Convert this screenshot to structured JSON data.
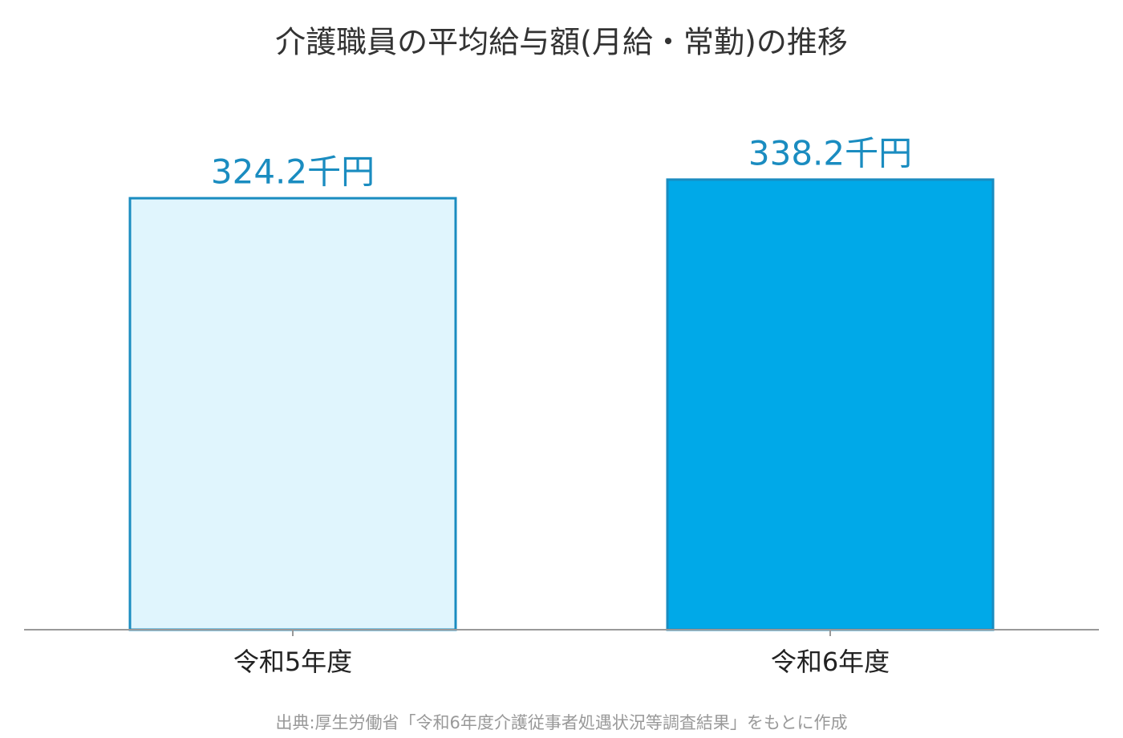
{
  "chart_data": {
    "type": "bar",
    "title": "介護職員の平均給与額(月給・常勤)の推移",
    "categories": [
      "令和5年度",
      "令和6年度"
    ],
    "values": [
      324.2,
      338.2
    ],
    "value_labels": [
      "324.2千円",
      "338.2千円"
    ],
    "colors": [
      "#e0f5fd",
      "#00a9e8"
    ],
    "edgecolor": "#1a8cc0",
    "ylim": [
      0,
      355
    ],
    "source": "出典:厚生労働省「令和6年度介護従事者処遇状況等調査結果」をもとに作成"
  }
}
